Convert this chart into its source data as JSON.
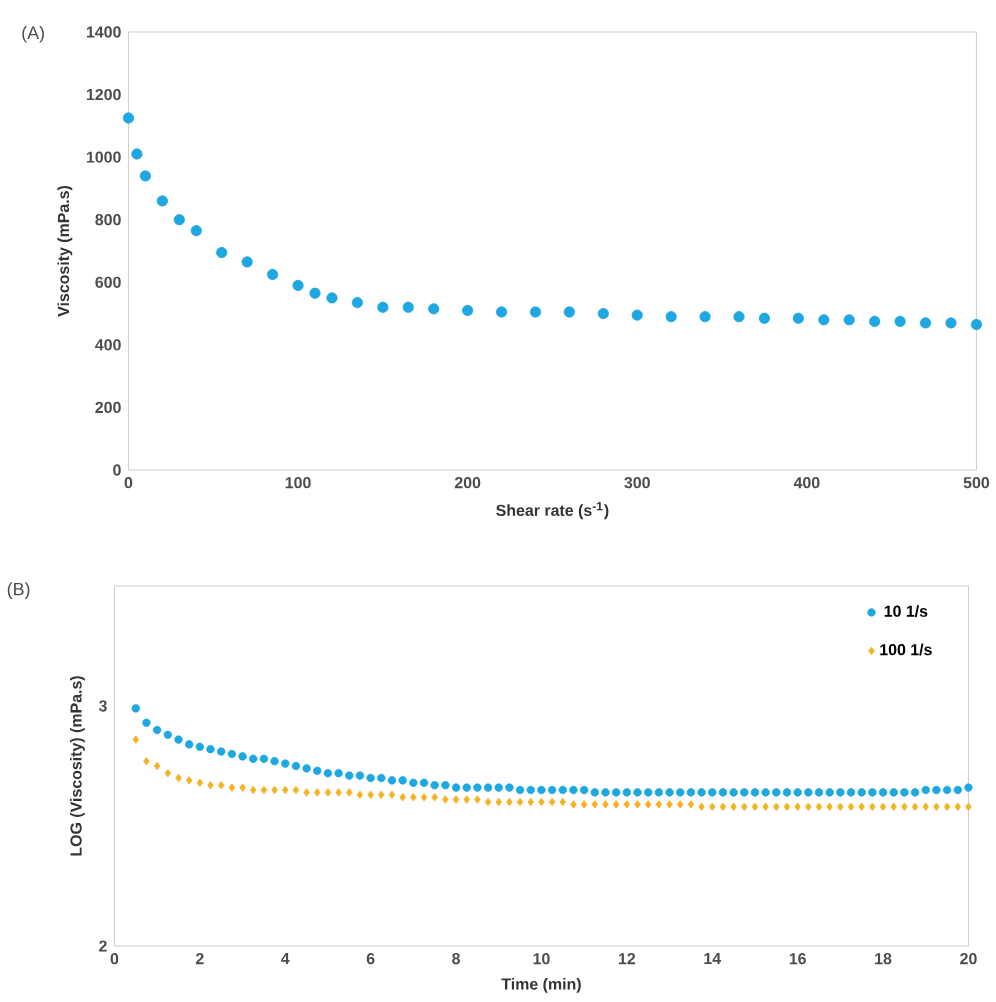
{
  "chart_data": [
    {
      "type": "scatter",
      "xlabel": "Shear rate (s$^{-1}$)",
      "ylabel": "Viscosity (mPa.s)",
      "annotations": [
        "(A)"
      ],
      "grid": false,
      "x": [
        0,
        5,
        10,
        20,
        30,
        40,
        55,
        70,
        85,
        100,
        110,
        120,
        135,
        150,
        165,
        180,
        200,
        220,
        240,
        260,
        280,
        300,
        320,
        340,
        360,
        375,
        395,
        410,
        425,
        440,
        455,
        470,
        485,
        500
      ],
      "series": [
        {
          "color": "#1ea7e1",
          "marker": "circle",
          "values": [
            1125,
            1010,
            940,
            860,
            800,
            765,
            695,
            665,
            625,
            590,
            565,
            550,
            535,
            520,
            520,
            515,
            510,
            505,
            505,
            505,
            500,
            495,
            490,
            490,
            490,
            485,
            485,
            480,
            480,
            475,
            475,
            470,
            470,
            465
          ]
        }
      ],
      "xlim": [
        0,
        500
      ],
      "xticks": [
        0,
        100,
        200,
        300,
        400,
        500
      ],
      "ylim": [
        0,
        1400
      ],
      "yticks": [
        0,
        200,
        400,
        600,
        800,
        1000,
        1200,
        1400
      ]
    },
    {
      "type": "scatter",
      "xlabel": "Time (min)",
      "ylabel": "LOG (Viscosity) (mPa.s)",
      "annotations": [
        "(B)"
      ],
      "grid": false,
      "legend": "top right",
      "x": [
        0.5,
        0.75,
        1,
        1.25,
        1.5,
        1.75,
        2,
        2.25,
        2.5,
        2.75,
        3,
        3.25,
        3.5,
        3.75,
        4,
        4.25,
        4.5,
        4.75,
        5,
        5.25,
        5.5,
        5.75,
        6,
        6.25,
        6.5,
        6.75,
        7,
        7.25,
        7.5,
        7.75,
        8,
        8.25,
        8.5,
        8.75,
        9,
        9.25,
        9.5,
        9.75,
        10,
        10.25,
        10.5,
        10.75,
        11,
        11.25,
        11.5,
        11.75,
        12,
        12.25,
        12.5,
        12.75,
        13,
        13.25,
        13.5,
        13.75,
        14,
        14.25,
        14.5,
        14.75,
        15,
        15.25,
        15.5,
        15.75,
        16,
        16.25,
        16.5,
        16.75,
        17,
        17.25,
        17.5,
        17.75,
        18,
        18.25,
        18.5,
        18.75,
        19,
        19.25,
        19.5,
        19.75,
        20
      ],
      "series": [
        {
          "name": "10 1/s",
          "color": "#1ea7e1",
          "marker": "circle",
          "values": [
            2.99,
            2.93,
            2.9,
            2.88,
            2.86,
            2.84,
            2.83,
            2.82,
            2.81,
            2.8,
            2.79,
            2.78,
            2.78,
            2.77,
            2.76,
            2.75,
            2.74,
            2.73,
            2.72,
            2.72,
            2.71,
            2.71,
            2.7,
            2.7,
            2.69,
            2.69,
            2.68,
            2.68,
            2.67,
            2.67,
            2.66,
            2.66,
            2.66,
            2.66,
            2.66,
            2.66,
            2.65,
            2.65,
            2.65,
            2.65,
            2.65,
            2.65,
            2.65,
            2.64,
            2.64,
            2.64,
            2.64,
            2.64,
            2.64,
            2.64,
            2.64,
            2.64,
            2.64,
            2.64,
            2.64,
            2.64,
            2.64,
            2.64,
            2.64,
            2.64,
            2.64,
            2.64,
            2.64,
            2.64,
            2.64,
            2.64,
            2.64,
            2.64,
            2.64,
            2.64,
            2.64,
            2.64,
            2.64,
            2.64,
            2.65,
            2.65,
            2.65,
            2.65,
            2.66
          ]
        },
        {
          "name": "100 1/s",
          "color": "#f5b324",
          "marker": "diamond",
          "values": [
            2.86,
            2.77,
            2.75,
            2.72,
            2.7,
            2.69,
            2.68,
            2.67,
            2.67,
            2.66,
            2.66,
            2.65,
            2.65,
            2.65,
            2.65,
            2.65,
            2.64,
            2.64,
            2.64,
            2.64,
            2.64,
            2.63,
            2.63,
            2.63,
            2.63,
            2.62,
            2.62,
            2.62,
            2.62,
            2.61,
            2.61,
            2.61,
            2.61,
            2.6,
            2.6,
            2.6,
            2.6,
            2.6,
            2.6,
            2.6,
            2.6,
            2.59,
            2.59,
            2.59,
            2.59,
            2.59,
            2.59,
            2.59,
            2.59,
            2.59,
            2.59,
            2.59,
            2.59,
            2.58,
            2.58,
            2.58,
            2.58,
            2.58,
            2.58,
            2.58,
            2.58,
            2.58,
            2.58,
            2.58,
            2.58,
            2.58,
            2.58,
            2.58,
            2.58,
            2.58,
            2.58,
            2.58,
            2.58,
            2.58,
            2.58,
            2.58,
            2.58,
            2.58,
            2.58
          ]
        }
      ],
      "xlim": [
        0,
        20
      ],
      "xticks": [
        0,
        2,
        4,
        6,
        8,
        10,
        12,
        14,
        16,
        18,
        20
      ],
      "ylim": [
        2,
        3.5
      ],
      "yticks": [
        2,
        3
      ]
    }
  ]
}
